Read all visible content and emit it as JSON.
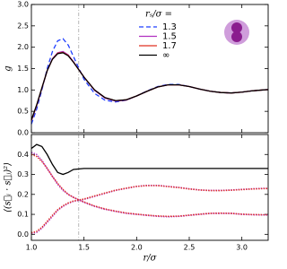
{
  "chart_data": [
    {
      "type": "line",
      "ylabel": "g",
      "legend_title": "rₛ/σ =",
      "legend": "upper right",
      "x": [
        1.0,
        1.05,
        1.1,
        1.15,
        1.2,
        1.25,
        1.3,
        1.35,
        1.4,
        1.5,
        1.6,
        1.7,
        1.8,
        1.9,
        2.0,
        2.1,
        2.2,
        2.3,
        2.4,
        2.5,
        2.6,
        2.7,
        2.8,
        2.9,
        3.0,
        3.1,
        3.2,
        3.25
      ],
      "series": [
        {
          "name": "1.3",
          "color": "#1f3fff",
          "style": "dashed",
          "values": [
            0.2,
            0.55,
            1.0,
            1.5,
            1.9,
            2.15,
            2.2,
            2.05,
            1.78,
            1.25,
            0.92,
            0.76,
            0.72,
            0.76,
            0.86,
            0.98,
            1.08,
            1.13,
            1.13,
            1.08,
            1.02,
            0.97,
            0.94,
            0.93,
            0.95,
            0.98,
            1.0,
            1.01
          ]
        },
        {
          "name": "1.5",
          "color": "#b030c0",
          "style": "solid",
          "values": [
            0.28,
            0.63,
            1.04,
            1.45,
            1.73,
            1.87,
            1.9,
            1.82,
            1.66,
            1.3,
            0.99,
            0.81,
            0.74,
            0.76,
            0.86,
            0.97,
            1.07,
            1.12,
            1.12,
            1.08,
            1.02,
            0.97,
            0.94,
            0.93,
            0.95,
            0.98,
            1.0,
            1.01
          ]
        },
        {
          "name": "1.7",
          "color": "#e03020",
          "style": "solid",
          "values": [
            0.29,
            0.64,
            1.05,
            1.45,
            1.72,
            1.86,
            1.88,
            1.81,
            1.65,
            1.3,
            1.0,
            0.82,
            0.75,
            0.77,
            0.86,
            0.97,
            1.07,
            1.12,
            1.12,
            1.08,
            1.02,
            0.97,
            0.94,
            0.93,
            0.95,
            0.98,
            1.0,
            1.01
          ]
        },
        {
          "name": "∞",
          "color": "#000000",
          "style": "solid",
          "values": [
            0.3,
            0.65,
            1.05,
            1.45,
            1.72,
            1.85,
            1.87,
            1.8,
            1.65,
            1.3,
            1.0,
            0.82,
            0.75,
            0.77,
            0.86,
            0.97,
            1.07,
            1.12,
            1.12,
            1.08,
            1.02,
            0.97,
            0.94,
            0.93,
            0.95,
            0.98,
            1.0,
            1.01
          ]
        }
      ],
      "xlim": [
        1.0,
        3.25
      ],
      "ylim": [
        0,
        3.0
      ],
      "xticks": [
        1.0,
        1.5,
        2.0,
        2.5,
        3.0
      ],
      "yticks": [
        {
          "value": 0,
          "label": "0.0"
        },
        0.5,
        {
          "value": 1,
          "label": "1.0"
        },
        1.5,
        {
          "value": 2,
          "label": "2.0"
        },
        2.5,
        {
          "value": 3,
          "label": "3.0"
        }
      ],
      "vline": 1.45
    },
    {
      "type": "line",
      "xlabel": "r/σ",
      "ylabel": "⟨(s⃗ᵢ · s⃗ⱼ)²⟩",
      "x": [
        1.0,
        1.05,
        1.1,
        1.15,
        1.2,
        1.25,
        1.3,
        1.35,
        1.4,
        1.5,
        1.6,
        1.7,
        1.8,
        1.9,
        2.0,
        2.1,
        2.2,
        2.3,
        2.4,
        2.5,
        2.6,
        2.7,
        2.8,
        2.9,
        3.0,
        3.1,
        3.2,
        3.25
      ],
      "series": [
        {
          "color": "#b030c0",
          "style": "dotted",
          "values": [
            0.41,
            0.4,
            0.37,
            0.33,
            0.29,
            0.25,
            0.22,
            0.2,
            0.185,
            0.16,
            0.14,
            0.125,
            0.115,
            0.105,
            0.1,
            0.095,
            0.09,
            0.088,
            0.09,
            0.095,
            0.1,
            0.105,
            0.105,
            0.105,
            0.1,
            0.098,
            0.097,
            0.097
          ]
        },
        {
          "color": "#e03020",
          "style": "dotted",
          "values": [
            0.4,
            0.39,
            0.365,
            0.33,
            0.29,
            0.255,
            0.225,
            0.2,
            0.185,
            0.162,
            0.142,
            0.127,
            0.116,
            0.107,
            0.101,
            0.096,
            0.092,
            0.09,
            0.091,
            0.096,
            0.101,
            0.105,
            0.106,
            0.105,
            0.101,
            0.099,
            0.098,
            0.098
          ]
        },
        {
          "color": "#b030c0",
          "style": "dotted",
          "values": [
            0.005,
            0.01,
            0.03,
            0.06,
            0.09,
            0.12,
            0.14,
            0.155,
            0.165,
            0.175,
            0.19,
            0.205,
            0.22,
            0.23,
            0.24,
            0.245,
            0.245,
            0.24,
            0.235,
            0.228,
            0.222,
            0.22,
            0.22,
            0.222,
            0.225,
            0.228,
            0.23,
            0.23
          ]
        },
        {
          "color": "#e03020",
          "style": "dotted",
          "values": [
            0.008,
            0.015,
            0.035,
            0.065,
            0.095,
            0.123,
            0.143,
            0.157,
            0.167,
            0.177,
            0.192,
            0.207,
            0.221,
            0.231,
            0.24,
            0.244,
            0.244,
            0.239,
            0.234,
            0.227,
            0.222,
            0.219,
            0.219,
            0.221,
            0.224,
            0.227,
            0.229,
            0.229
          ]
        },
        {
          "color": "#000000",
          "style": "solid",
          "values": [
            0.43,
            0.45,
            0.44,
            0.4,
            0.35,
            0.31,
            0.3,
            0.31,
            0.325,
            0.33,
            0.33,
            0.33,
            0.33,
            0.33,
            0.33,
            0.33,
            0.33,
            0.33,
            0.33,
            0.33,
            0.33,
            0.33,
            0.33,
            0.33,
            0.33,
            0.33,
            0.33,
            0.33
          ]
        }
      ],
      "xlim": [
        1.0,
        3.25
      ],
      "ylim": [
        -0.03,
        0.5
      ],
      "xticks": [
        {
          "value": 1,
          "label": "1.0"
        },
        1.5,
        {
          "value": 2,
          "label": "2.0"
        },
        2.5,
        {
          "value": 3,
          "label": "3.0"
        }
      ],
      "yticks": [
        {
          "value": 0,
          "label": "0.0"
        },
        0.1,
        0.2,
        0.3,
        0.4
      ],
      "vline": 1.45
    }
  ]
}
